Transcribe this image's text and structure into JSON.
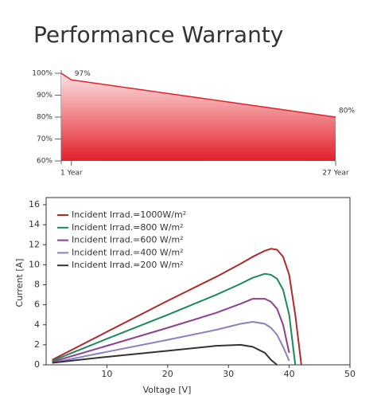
{
  "chart_data": [
    {
      "type": "area",
      "title": "Performance Warranty",
      "color": "#e3202b",
      "x": [
        0,
        1,
        27
      ],
      "values": [
        100,
        97,
        80
      ],
      "value_labels": [
        null,
        "97%",
        "80%"
      ],
      "xlim": [
        0,
        27
      ],
      "xticks": [
        {
          "value": 1,
          "label": "1 Year"
        },
        {
          "value": 27,
          "label": "27 Year"
        }
      ],
      "ylim": [
        60,
        100
      ],
      "yticks": [
        {
          "value": 100,
          "label": "100%"
        },
        {
          "value": 90,
          "label": "90%"
        },
        {
          "value": 80,
          "label": "80%"
        },
        {
          "value": 70,
          "label": "70%"
        },
        {
          "value": 60,
          "label": "60%"
        }
      ]
    },
    {
      "type": "line",
      "x_label": "Voltage [V]",
      "y_label": "Current [A]",
      "x": [
        1,
        10,
        20,
        28,
        32,
        34,
        36,
        37,
        38,
        39,
        40,
        41,
        42
      ],
      "series": [
        {
          "name": "Incident Irrad.=1000W/m²",
          "color": "#b3282d",
          "values": [
            0.5,
            3.3,
            6.4,
            8.8,
            10.1,
            10.8,
            11.4,
            11.6,
            11.5,
            10.8,
            9.0,
            5.0,
            0
          ]
        },
        {
          "name": "Incident Irrad.=800 W/m²",
          "color": "#1b8a5a",
          "values": [
            0.4,
            2.6,
            5.0,
            7.0,
            8.1,
            8.7,
            9.1,
            9.0,
            8.6,
            7.5,
            5.0,
            0,
            null
          ]
        },
        {
          "name": "Incident Irrad.=600 W/m²",
          "color": "#8e3f8e",
          "values": [
            0.3,
            1.9,
            3.7,
            5.2,
            6.1,
            6.6,
            6.6,
            6.3,
            5.6,
            4.0,
            1.2,
            null,
            null
          ]
        },
        {
          "name": "Incident Irrad.=400 W/m²",
          "color": "#8d7fc0",
          "values": [
            0.2,
            1.3,
            2.5,
            3.5,
            4.1,
            4.3,
            4.1,
            3.7,
            3.0,
            1.8,
            0.4,
            null,
            null
          ]
        },
        {
          "name": "Incident Irrad.=200 W/m²",
          "color": "#333333",
          "values": [
            0.2,
            0.8,
            1.4,
            1.9,
            2.0,
            1.8,
            1.2,
            0.5,
            0,
            null,
            null,
            null,
            null
          ]
        }
      ],
      "xlim": [
        0,
        50
      ],
      "xticks": [
        10,
        20,
        30,
        40,
        50
      ],
      "ylim": [
        0,
        16
      ],
      "yticks": [
        0,
        2,
        4,
        6,
        8,
        10,
        12,
        14,
        16
      ]
    }
  ]
}
